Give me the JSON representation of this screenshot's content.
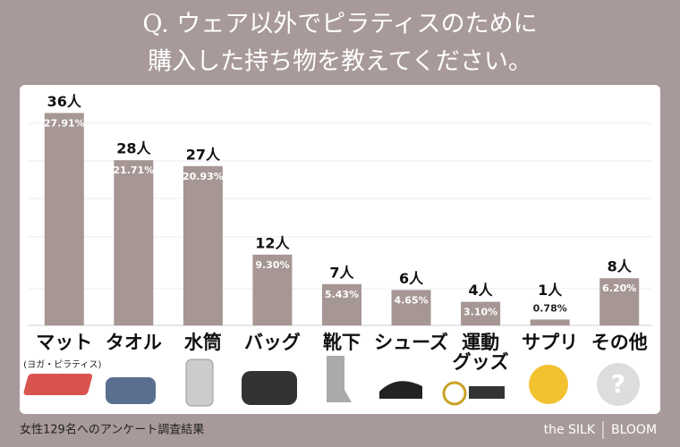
{
  "chart_data": {
    "type": "bar",
    "title_lines": [
      "Q. ウェア以外でピラティスのために",
      "購入した持ち物を教えてください。"
    ],
    "categories": [
      "マット",
      "タオル",
      "水筒",
      "バッグ",
      "靴下",
      "シューズ",
      "運動\nグッズ",
      "サプリ",
      "その他"
    ],
    "category_notes": [
      "(ヨガ・ピラティス)",
      null,
      null,
      null,
      null,
      null,
      null,
      null,
      null
    ],
    "values": [
      36,
      28,
      27,
      12,
      7,
      6,
      4,
      1,
      8
    ],
    "value_labels": [
      "36人",
      "28人",
      "27人",
      "12人",
      "7人",
      "6人",
      "4人",
      "1人",
      "8人"
    ],
    "percents": [
      27.91,
      21.71,
      20.93,
      9.3,
      5.43,
      4.65,
      3.1,
      0.78,
      6.2
    ],
    "percent_labels": [
      "27.91%",
      "21.71%",
      "20.93%",
      "9.30%",
      "5.43%",
      "4.65%",
      "3.10%",
      "0.78%",
      "6.20%"
    ],
    "color": "#a69694",
    "ylim": [
      0,
      40
    ],
    "footnote": "女性129名へのアンケート調査結果",
    "brand": [
      "the SILK",
      "BLOOM"
    ]
  }
}
